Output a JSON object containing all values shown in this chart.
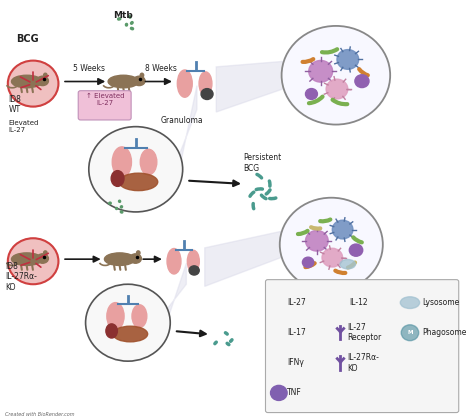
{
  "fig_width": 4.74,
  "fig_height": 4.18,
  "dpi": 100,
  "bg_color": "#ffffff",
  "labels": {
    "bcg": "BCG",
    "five_weeks": "5 Weeks",
    "eight_weeks": "8 Weeks",
    "mtb": "Mtb",
    "granuloma": "Granuloma",
    "elevated_il27_box": "↑ Elevated\nIL-27",
    "elevated_il27": "Elevated\nIL-27",
    "d8_wt": "ID8\nWT",
    "d8_ko": "ID8\nIL-27Rα-\nKO",
    "persistent_bcg": "Persistent\nBCG",
    "created_with": "Created with BioRender.com",
    "legend_il27": "IL-27",
    "legend_il12": "IL-12",
    "legend_il17": "IL-17",
    "legend_il27r": "IL-27\nReceptor",
    "legend_lysosome": "Lysosome",
    "legend_ifng": "IFNγ",
    "legend_il27rako": "IL-27Rα-\nKO",
    "legend_tnf": "TNF",
    "legend_phagosome": "Phagosome"
  },
  "colors": {
    "arrow_dark": "#1a1a1a",
    "lung_pink": "#e8a0a0",
    "liver_brown": "#a0522d",
    "spleen_dark": "#8B3030",
    "elevated_box_face": "#f0c0d8",
    "elevated_box_edge": "#c090b8",
    "elevated_box_text": "#803060",
    "circle_bg": "#f8f8ff",
    "circle_edge": "#888888",
    "legend_box": "#f5f5f5",
    "legend_border": "#aaaaaa",
    "text_dark": "#222222",
    "text_gray": "#666666",
    "il27_green": "#5a8a3a",
    "il12_orange": "#d07030",
    "il17_cream": "#c8b870",
    "il27receptor_purple": "#7050a0",
    "ifng_green": "#3a7a3a",
    "tnf_purple": "#8060b0",
    "il27rako_purple": "#7050a0",
    "lysosome_blue": "#a0c0d0",
    "phagosome_blue": "#5090a0",
    "beam_gray": "#d8d8e8",
    "mouse_brown": "#8B7355",
    "vein_bg": "#f0c0c0",
    "vein_border": "#d04040",
    "vein_line": "#c03040",
    "trachea_blue": "#5080b0",
    "cell_purple": "#c080c0",
    "cell_purple_spike": "#9060a0",
    "cell_blue": "#7090c0",
    "cell_blue_spike": "#5070a0",
    "cell_pink": "#e0a0c0",
    "cell_pink_spike": "#c080a0",
    "cell_sm_purple": "#9060b0",
    "bacteria_green": "#7ab050",
    "bacteria_orange": "#d08030",
    "bacteria_cream": "#c8b870",
    "bacteria_teal": "#4a9b8e",
    "mtb_green": "#5a9a6a",
    "granuloma_dot": "#444444",
    "organs_bg": "#f8f8f8",
    "organs_edge": "#555555"
  }
}
